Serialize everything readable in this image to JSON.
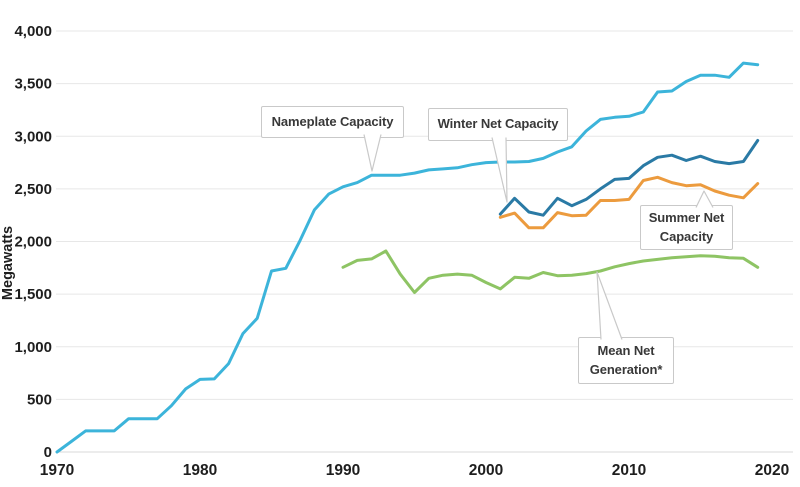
{
  "figure": {
    "background_color": "#ffffff",
    "grid_color": "#e7e7e7",
    "axis_line_color": "#d9d9d9",
    "tick_label_color": "#1e1e1e",
    "callout_border_color": "#c9c9c9",
    "callout_text_color": "#383838"
  },
  "axis": {
    "y_title": "Megawatts"
  },
  "callouts": [
    {
      "id": "nameplate",
      "lines": [
        "Nameplate Capacity"
      ]
    },
    {
      "id": "winter",
      "lines": [
        "Winter Net Capacity"
      ]
    },
    {
      "id": "summer",
      "lines": [
        "Summer Net",
        "Capacity"
      ]
    },
    {
      "id": "mean",
      "lines": [
        "Mean Net",
        "Generation*"
      ]
    }
  ],
  "chart_data": {
    "type": "line",
    "title": "",
    "xlabel": "",
    "ylabel": "Megawatts",
    "xlim": [
      1970,
      2020
    ],
    "ylim": [
      0,
      4000
    ],
    "grid": "horizontal",
    "legend_position": "inline-callouts",
    "x_tick_values": [
      1970,
      1980,
      1990,
      2000,
      2010,
      2020
    ],
    "x_tick_labels": [
      "1970",
      "1980",
      "1990",
      "2000",
      "2010",
      "2020"
    ],
    "y_tick_values": [
      0,
      500,
      1000,
      1500,
      2000,
      2500,
      3000,
      3500,
      4000
    ],
    "y_tick_labels": [
      "0",
      "500",
      "1,000",
      "1,500",
      "2,000",
      "2,500",
      "3,000",
      "3,500",
      "4,000"
    ],
    "units": "Megawatts",
    "series": [
      {
        "name": "Nameplate Capacity",
        "color": "#3cb4da",
        "line_width": 3,
        "start_year": 1970,
        "values": [
          0,
          100,
          200,
          200,
          200,
          315,
          315,
          315,
          440,
          600,
          690,
          695,
          840,
          1125,
          1270,
          1720,
          1745,
          2010,
          2300,
          2450,
          2520,
          2560,
          2630,
          2630,
          2630,
          2650,
          2680,
          2690,
          2700,
          2730,
          2750,
          2755,
          2755,
          2760,
          2790,
          2850,
          2900,
          3050,
          3160,
          3180,
          3190,
          3230,
          3420,
          3430,
          3520,
          3580,
          3580,
          3560,
          3695,
          3680
        ]
      },
      {
        "name": "Mean Net Generation*",
        "color": "#8ec464",
        "line_width": 3,
        "start_year": 1990,
        "values": [
          1755,
          1820,
          1835,
          1910,
          1690,
          1515,
          1650,
          1680,
          1690,
          1680,
          1610,
          1550,
          1660,
          1650,
          1705,
          1675,
          1680,
          1695,
          1720,
          1760,
          1790,
          1815,
          1830,
          1845,
          1855,
          1865,
          1860,
          1845,
          1840,
          1755
        ]
      },
      {
        "name": "Summer Net Capacity",
        "color": "#ec9b3e",
        "line_width": 3,
        "start_year": 2001,
        "values": [
          2230,
          2270,
          2130,
          2130,
          2275,
          2245,
          2250,
          2390,
          2390,
          2400,
          2580,
          2610,
          2560,
          2530,
          2540,
          2480,
          2440,
          2415,
          2550
        ]
      },
      {
        "name": "Winter Net Capacity",
        "color": "#2a7aa5",
        "line_width": 3,
        "start_year": 2001,
        "values": [
          2260,
          2410,
          2280,
          2250,
          2410,
          2340,
          2400,
          2500,
          2590,
          2600,
          2720,
          2800,
          2820,
          2770,
          2810,
          2760,
          2740,
          2760,
          2960
        ]
      }
    ]
  }
}
